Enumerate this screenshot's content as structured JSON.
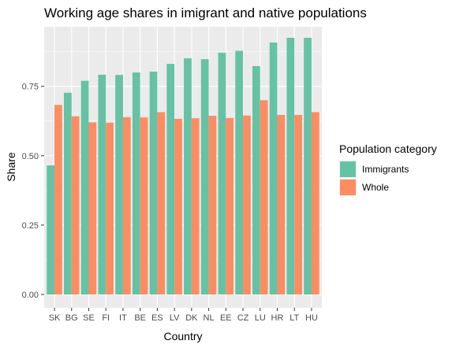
{
  "chart_data": {
    "type": "bar",
    "title": "Working age shares in imigrant and native populations",
    "xlabel": "Country",
    "ylabel": "Share",
    "categories": [
      "SK",
      "BG",
      "SE",
      "FI",
      "IT",
      "BE",
      "ES",
      "LV",
      "DK",
      "NL",
      "EE",
      "CZ",
      "LU",
      "HR",
      "LT",
      "HU"
    ],
    "series": [
      {
        "name": "Immigrants",
        "color": "#66c2a5",
        "values": [
          0.465,
          0.727,
          0.77,
          0.792,
          0.791,
          0.8,
          0.803,
          0.831,
          0.851,
          0.848,
          0.871,
          0.878,
          0.823,
          0.908,
          0.925,
          0.925
        ]
      },
      {
        "name": "Whole",
        "color": "#fc8d62",
        "values": [
          0.683,
          0.642,
          0.62,
          0.619,
          0.639,
          0.638,
          0.657,
          0.633,
          0.635,
          0.644,
          0.636,
          0.645,
          0.7,
          0.647,
          0.647,
          0.657
        ]
      }
    ],
    "ylim": [
      0,
      0.97
    ],
    "yticks": [
      0,
      0.25,
      0.5,
      0.75
    ],
    "ytick_labels": [
      "0.00",
      "0.25",
      "0.50",
      "0.75"
    ],
    "grid": true,
    "panel_background": "#ebebeb",
    "legend": {
      "title": "Population category",
      "position": "right"
    }
  }
}
